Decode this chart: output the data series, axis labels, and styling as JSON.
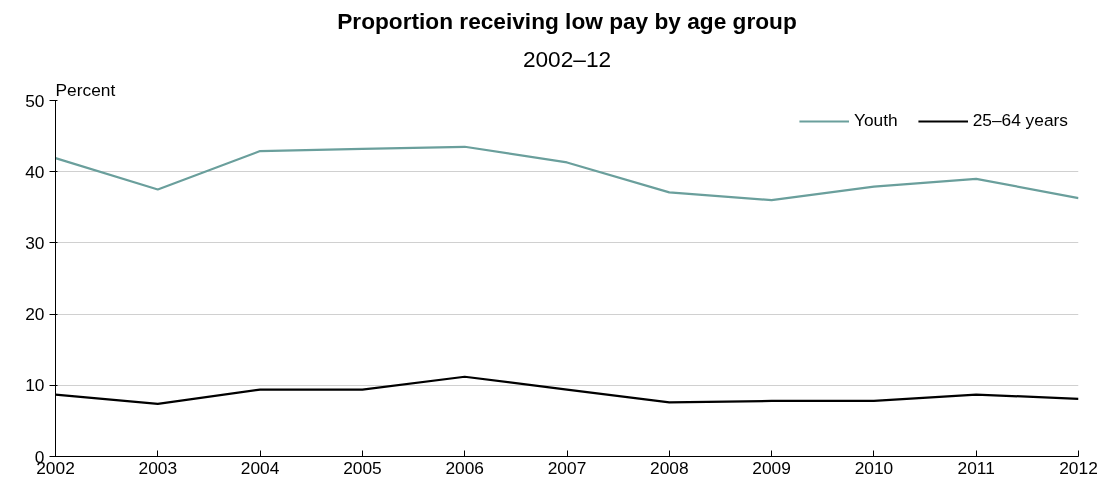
{
  "chart_data": {
    "type": "line",
    "title": "Proportion receiving low pay by age group",
    "subtitle": "2002–12",
    "ylabel": "Percent",
    "x": [
      2002,
      2003,
      2004,
      2005,
      2006,
      2007,
      2008,
      2009,
      2010,
      2011,
      2012
    ],
    "series": [
      {
        "name": "Youth",
        "color": "#6a9f9c",
        "values": [
          41.9,
          37.5,
          42.9,
          43.2,
          43.5,
          41.3,
          37.1,
          36.0,
          37.9,
          39.0,
          36.3
        ]
      },
      {
        "name": "25–64 years",
        "color": "#000000",
        "values": [
          8.7,
          7.4,
          9.4,
          9.4,
          11.2,
          9.4,
          7.6,
          7.8,
          7.8,
          8.7,
          8.1
        ]
      }
    ],
    "xlim": [
      2002,
      2012
    ],
    "xticks": [
      2002,
      2003,
      2004,
      2005,
      2006,
      2007,
      2008,
      2009,
      2010,
      2011,
      2012
    ],
    "ylim": [
      0,
      50
    ],
    "yticks": [
      0,
      10,
      20,
      30,
      40,
      50
    ],
    "grid": "y",
    "legend": "top right",
    "marker": "none",
    "line_style": "solid"
  }
}
